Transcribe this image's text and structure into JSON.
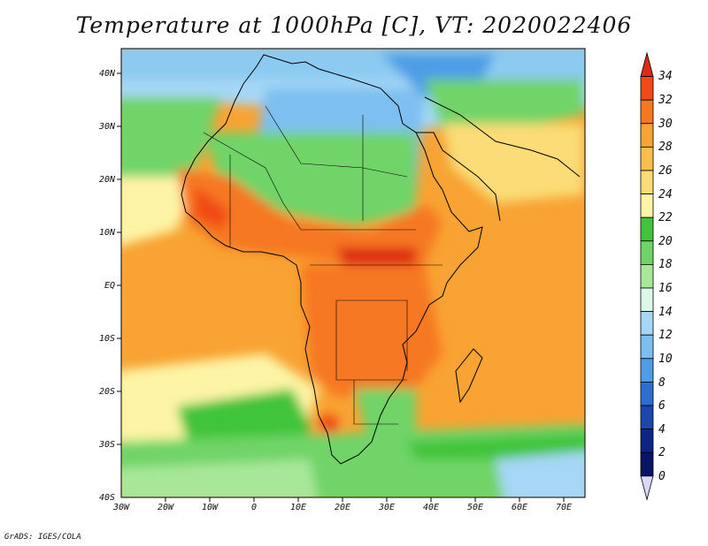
{
  "title": "Temperature at 1000hPa [C], VT: 2020022406",
  "credit": "GrADS: IGES/COLA",
  "map": {
    "lon_range": [
      -30,
      75
    ],
    "lat_range": [
      -40,
      45
    ],
    "lat_ticks": [
      "40N",
      "30N",
      "20N",
      "10N",
      "EQ",
      "10S",
      "20S",
      "30S",
      "40S"
    ],
    "lon_ticks": [
      "30W",
      "20W",
      "10W",
      "0",
      "10E",
      "20E",
      "30E",
      "40E",
      "50E",
      "60E",
      "70E"
    ]
  },
  "colorbar": {
    "levels": [
      "34",
      "32",
      "30",
      "28",
      "26",
      "24",
      "22",
      "20",
      "18",
      "16",
      "14",
      "12",
      "10",
      "8",
      "6",
      "4",
      "2",
      "0"
    ],
    "colors": [
      "#dd2a14",
      "#f04a16",
      "#f67821",
      "#f8a333",
      "#f9be4b",
      "#fbdc76",
      "#fdf4a6",
      "#3fc43a",
      "#6fd468",
      "#a8e79a",
      "#def8e8",
      "#a6d7f6",
      "#7dbff0",
      "#4e9de6",
      "#2c6fd3",
      "#1b47ac",
      "#0e2585",
      "#071566",
      "#d8d8fc"
    ]
  }
}
